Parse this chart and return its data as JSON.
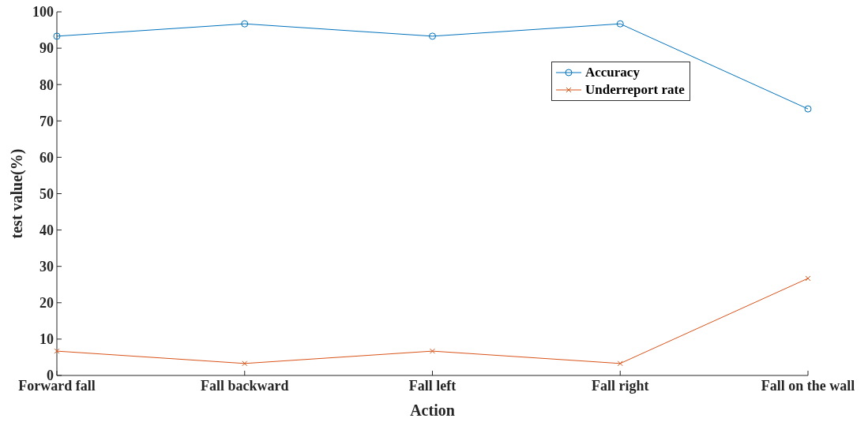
{
  "chart_data": {
    "type": "line",
    "xlabel": "Action",
    "ylabel": "test value(%)",
    "categories": [
      "Forward fall",
      "Fall backward",
      "Fall left",
      "Fall right",
      "Fall on the wall"
    ],
    "series": [
      {
        "name": "Accuracy",
        "color": "#0072bd",
        "marker": "circle",
        "values": [
          93.3,
          96.7,
          93.3,
          96.7,
          73.3
        ]
      },
      {
        "name": "Underreport rate",
        "color": "#d95319",
        "marker": "cross",
        "values": [
          6.7,
          3.3,
          6.7,
          3.3,
          26.7
        ]
      }
    ],
    "ylim": [
      0,
      100
    ],
    "yticks": [
      0,
      10,
      20,
      30,
      40,
      50,
      60,
      70,
      80,
      90,
      100
    ],
    "grid": false,
    "legend": "top right",
    "line_style": "solid"
  }
}
